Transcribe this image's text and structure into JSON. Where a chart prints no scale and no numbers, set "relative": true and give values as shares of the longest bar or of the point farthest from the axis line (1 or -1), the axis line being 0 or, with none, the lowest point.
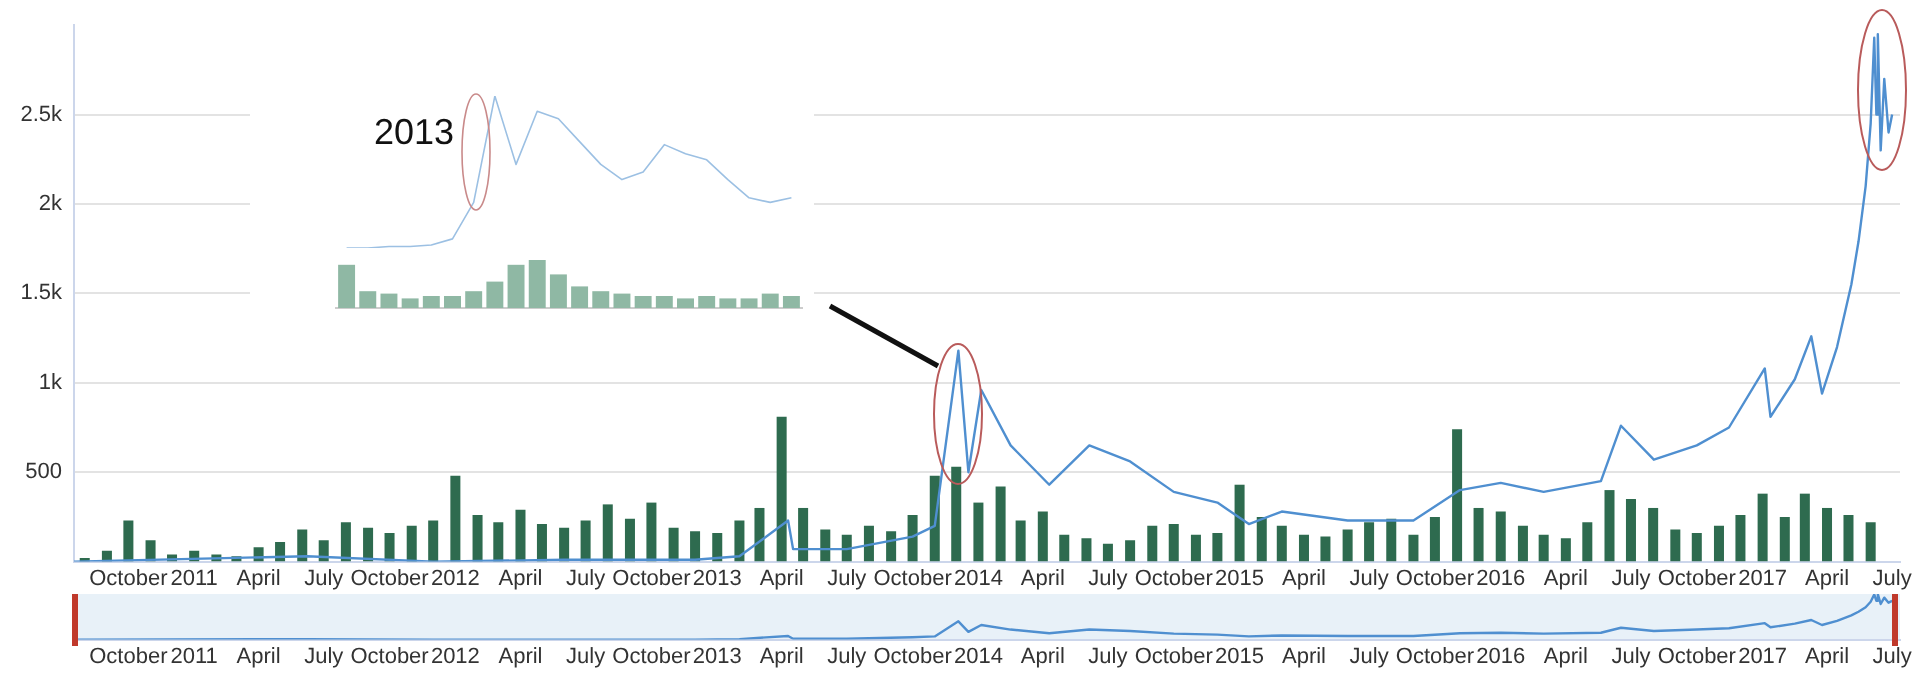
{
  "chart_data": [
    {
      "type": "line",
      "xlim": [
        "2010-07-17",
        "2017-07-12"
      ],
      "xticks": [
        {
          "value": "2010-10",
          "label": "October"
        },
        {
          "value": "2011-01",
          "label": "2011"
        },
        {
          "value": "2011-04",
          "label": "April"
        },
        {
          "value": "2011-07",
          "label": "July"
        },
        {
          "value": "2011-10",
          "label": "October"
        },
        {
          "value": "2012-01",
          "label": "2012"
        },
        {
          "value": "2012-04",
          "label": "April"
        },
        {
          "value": "2012-07",
          "label": "July"
        },
        {
          "value": "2012-10",
          "label": "October"
        },
        {
          "value": "2013-01",
          "label": "2013"
        },
        {
          "value": "2013-04",
          "label": "April"
        },
        {
          "value": "2013-07",
          "label": "July"
        },
        {
          "value": "2013-10",
          "label": "October"
        },
        {
          "value": "2014-01",
          "label": "2014"
        },
        {
          "value": "2014-04",
          "label": "April"
        },
        {
          "value": "2014-07",
          "label": "July"
        },
        {
          "value": "2014-10",
          "label": "October"
        },
        {
          "value": "2015-01",
          "label": "2015"
        },
        {
          "value": "2015-04",
          "label": "April"
        },
        {
          "value": "2015-07",
          "label": "July"
        },
        {
          "value": "2015-10",
          "label": "October"
        },
        {
          "value": "2016-01",
          "label": "2016"
        },
        {
          "value": "2016-04",
          "label": "April"
        },
        {
          "value": "2016-07",
          "label": "July"
        },
        {
          "value": "2016-10",
          "label": "October"
        },
        {
          "value": "2017-01",
          "label": "2017"
        },
        {
          "value": "2017-04",
          "label": "April"
        },
        {
          "value": "2017-07",
          "label": "July"
        }
      ],
      "ylim": [
        0,
        3000
      ],
      "yticks": [
        {
          "value": 500,
          "label": "500"
        },
        {
          "value": 1000,
          "label": "1k"
        },
        {
          "value": 1500,
          "label": "1.5k"
        },
        {
          "value": 2000,
          "label": "2k"
        },
        {
          "value": 2500,
          "label": "2.5k"
        }
      ],
      "grid": "y",
      "legend": false,
      "marker": "none",
      "line_style": "solid",
      "series": [
        {
          "type": "bar",
          "color": "#2e6b4f",
          "x": [
            "2010-08",
            "2010-09",
            "2010-10",
            "2010-11",
            "2010-12",
            "2011-01",
            "2011-02",
            "2011-03",
            "2011-04",
            "2011-05",
            "2011-06",
            "2011-07",
            "2011-08",
            "2011-09",
            "2011-10",
            "2011-11",
            "2011-12",
            "2012-01",
            "2012-02",
            "2012-03",
            "2012-04",
            "2012-05",
            "2012-06",
            "2012-07",
            "2012-08",
            "2012-09",
            "2012-10",
            "2012-11",
            "2012-12",
            "2013-01",
            "2013-02",
            "2013-03",
            "2013-04",
            "2013-05",
            "2013-06",
            "2013-07",
            "2013-08",
            "2013-09",
            "2013-10",
            "2013-11",
            "2013-12",
            "2014-01",
            "2014-02",
            "2014-03",
            "2014-04",
            "2014-05",
            "2014-06",
            "2014-07",
            "2014-08",
            "2014-09",
            "2014-10",
            "2014-11",
            "2014-12",
            "2015-01",
            "2015-02",
            "2015-03",
            "2015-04",
            "2015-05",
            "2015-06",
            "2015-07",
            "2015-08",
            "2015-09",
            "2015-10",
            "2015-11",
            "2015-12",
            "2016-01",
            "2016-02",
            "2016-03",
            "2016-04",
            "2016-05",
            "2016-06",
            "2016-07",
            "2016-08",
            "2016-09",
            "2016-10",
            "2016-11",
            "2016-12",
            "2017-01",
            "2017-02",
            "2017-03",
            "2017-04",
            "2017-05",
            "2017-06"
          ],
          "values": [
            20,
            60,
            230,
            120,
            40,
            60,
            40,
            30,
            80,
            110,
            180,
            120,
            220,
            190,
            160,
            200,
            230,
            480,
            260,
            220,
            290,
            210,
            190,
            230,
            320,
            240,
            330,
            190,
            170,
            160,
            230,
            300,
            810,
            300,
            180,
            150,
            200,
            170,
            260,
            480,
            530,
            330,
            420,
            230,
            280,
            150,
            130,
            100,
            120,
            200,
            210,
            150,
            160,
            430,
            250,
            200,
            150,
            140,
            180,
            220,
            240,
            150,
            250,
            740,
            300,
            280,
            200,
            150,
            130,
            220,
            400,
            350,
            300,
            180,
            160,
            200,
            260,
            380,
            250,
            380,
            300,
            260,
            220
          ]
        },
        {
          "color": "#4f8fd0",
          "x": [
            "2010-07-17",
            "2011-06-08",
            "2011-12-01",
            "2012-06-01",
            "2012-12-01",
            "2013-02-01",
            "2013-04-10",
            "2013-04-17",
            "2013-07-01",
            "2013-10-01",
            "2013-11-01",
            "2013-12-04",
            "2013-12-18",
            "2014-01-05",
            "2014-02-15",
            "2014-04-10",
            "2014-06-05",
            "2014-08-01",
            "2014-10-01",
            "2014-12-01",
            "2015-01-14",
            "2015-03-01",
            "2015-06-01",
            "2015-09-01",
            "2015-11-05",
            "2016-01-01",
            "2016-03-01",
            "2016-05-20",
            "2016-06-17",
            "2016-08-02",
            "2016-10-01",
            "2016-11-15",
            "2017-01-04",
            "2017-01-12",
            "2017-02-15",
            "2017-03-10",
            "2017-03-25",
            "2017-04-15",
            "2017-05-05",
            "2017-05-15",
            "2017-05-25",
            "2017-06-01",
            "2017-06-06",
            "2017-06-09",
            "2017-06-11",
            "2017-06-15",
            "2017-06-20",
            "2017-06-26",
            "2017-07-01"
          ],
          "values": [
            0,
            30,
            0,
            10,
            10,
            30,
            230,
            70,
            70,
            140,
            200,
            1180,
            500,
            960,
            650,
            430,
            650,
            560,
            390,
            330,
            210,
            280,
            230,
            230,
            400,
            440,
            390,
            450,
            760,
            570,
            650,
            750,
            1080,
            810,
            1020,
            1260,
            940,
            1200,
            1550,
            1790,
            2100,
            2450,
            2930,
            2500,
            2950,
            2300,
            2700,
            2400,
            2500
          ]
        }
      ]
    },
    {
      "type": "line",
      "tick_labels": "x",
      "grid": false,
      "legend": false,
      "marker": "none",
      "relative": true,
      "xlim": [
        "2010-07-17",
        "2017-07-12"
      ],
      "xticks": [
        {
          "value": "2010-10",
          "label": "October"
        },
        {
          "value": "2011-01",
          "label": "2011"
        },
        {
          "value": "2011-04",
          "label": "April"
        },
        {
          "value": "2011-07",
          "label": "July"
        },
        {
          "value": "2011-10",
          "label": "October"
        },
        {
          "value": "2012-01",
          "label": "2012"
        },
        {
          "value": "2012-04",
          "label": "April"
        },
        {
          "value": "2012-07",
          "label": "July"
        },
        {
          "value": "2012-10",
          "label": "October"
        },
        {
          "value": "2013-01",
          "label": "2013"
        },
        {
          "value": "2013-04",
          "label": "April"
        },
        {
          "value": "2013-07",
          "label": "July"
        },
        {
          "value": "2013-10",
          "label": "October"
        },
        {
          "value": "2014-01",
          "label": "2014"
        },
        {
          "value": "2014-04",
          "label": "April"
        },
        {
          "value": "2014-07",
          "label": "July"
        },
        {
          "value": "2014-10",
          "label": "October"
        },
        {
          "value": "2015-01",
          "label": "2015"
        },
        {
          "value": "2015-04",
          "label": "April"
        },
        {
          "value": "2015-07",
          "label": "July"
        },
        {
          "value": "2015-10",
          "label": "October"
        },
        {
          "value": "2016-01",
          "label": "2016"
        },
        {
          "value": "2016-04",
          "label": "April"
        },
        {
          "value": "2016-07",
          "label": "July"
        },
        {
          "value": "2016-10",
          "label": "October"
        },
        {
          "value": "2017-01",
          "label": "2017"
        },
        {
          "value": "2017-04",
          "label": "April"
        },
        {
          "value": "2017-07",
          "label": "July"
        }
      ],
      "series": [
        {
          "color": "#4f8fd0",
          "x": [
            "2010-07-17",
            "2011-06-08",
            "2011-12-01",
            "2012-06-01",
            "2012-12-01",
            "2013-02-01",
            "2013-04-10",
            "2013-04-17",
            "2013-07-01",
            "2013-10-01",
            "2013-11-01",
            "2013-12-04",
            "2013-12-18",
            "2014-01-05",
            "2014-02-15",
            "2014-04-10",
            "2014-06-05",
            "2014-08-01",
            "2014-10-01",
            "2014-12-01",
            "2015-01-14",
            "2015-03-01",
            "2015-06-01",
            "2015-09-01",
            "2015-11-05",
            "2016-01-01",
            "2016-03-01",
            "2016-05-20",
            "2016-06-17",
            "2016-08-02",
            "2016-10-01",
            "2016-11-15",
            "2017-01-04",
            "2017-01-12",
            "2017-02-15",
            "2017-03-10",
            "2017-03-25",
            "2017-04-15",
            "2017-05-05",
            "2017-05-15",
            "2017-05-25",
            "2017-06-01",
            "2017-06-06",
            "2017-06-09",
            "2017-06-11",
            "2017-06-15",
            "2017-06-20",
            "2017-06-26",
            "2017-07-01"
          ],
          "values": [
            0,
            0.01,
            0,
            0,
            0,
            0.01,
            0.08,
            0.02,
            0.02,
            0.05,
            0.07,
            0.4,
            0.17,
            0.32,
            0.22,
            0.14,
            0.22,
            0.19,
            0.13,
            0.11,
            0.07,
            0.09,
            0.08,
            0.08,
            0.14,
            0.15,
            0.13,
            0.15,
            0.26,
            0.19,
            0.22,
            0.25,
            0.36,
            0.27,
            0.35,
            0.43,
            0.32,
            0.41,
            0.53,
            0.61,
            0.71,
            0.83,
            0.99,
            0.85,
            1,
            0.78,
            0.92,
            0.81,
            0.85
          ]
        }
      ]
    },
    {
      "type": "line",
      "relative": true,
      "tick_labels": false,
      "legend": false,
      "marker": "none",
      "annotations": [
        "2013"
      ],
      "categories": [
        null,
        null,
        null,
        null,
        null,
        null,
        null,
        null,
        null,
        null,
        null,
        null,
        null,
        null,
        null,
        null,
        null,
        null,
        null,
        null,
        null,
        null
      ],
      "series": [
        {
          "color": "#9cc0e3",
          "values": [
            0,
            0,
            0.01,
            0.01,
            0.02,
            0.06,
            0.3,
            1,
            0.55,
            0.9,
            0.85,
            0.7,
            0.55,
            0.45,
            0.5,
            0.68,
            0.62,
            0.58,
            0.45,
            0.33,
            0.3,
            0.33
          ]
        }
      ]
    },
    {
      "type": "bar",
      "relative": true,
      "tick_labels": false,
      "legend": false,
      "categories": [
        null,
        null,
        null,
        null,
        null,
        null,
        null,
        null,
        null,
        null,
        null,
        null,
        null,
        null,
        null,
        null,
        null,
        null,
        null,
        null,
        null,
        null
      ],
      "series": [
        {
          "color": "#8fb8a4",
          "values": [
            0.9,
            0.35,
            0.3,
            0.2,
            0.25,
            0.25,
            0.35,
            0.55,
            0.9,
            1,
            0.7,
            0.45,
            0.35,
            0.3,
            0.25,
            0.25,
            0.2,
            0.25,
            0.2,
            0.2,
            0.3,
            0.25
          ]
        }
      ]
    }
  ]
}
